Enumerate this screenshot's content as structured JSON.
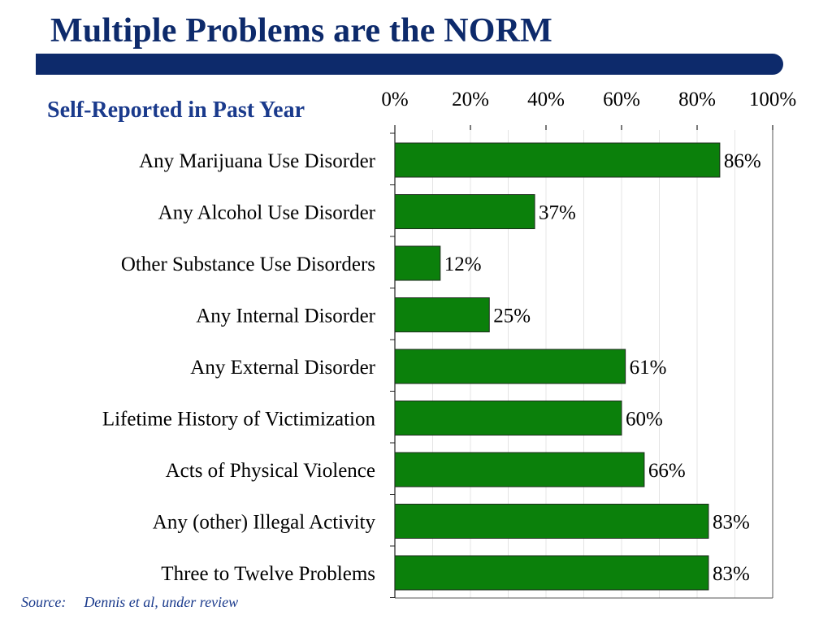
{
  "slide": {
    "title": "Multiple Problems are the NORM",
    "subtitle": "Self-Reported in Past Year",
    "source_label": "Source:",
    "source_text": "Dennis et al, under review"
  },
  "colors": {
    "title": "#0d2a6b",
    "title_bar": "#0d2a6b",
    "bar_fill": "#0b800b",
    "bar_stroke": "#1c2a1c",
    "subtitle": "#1a3a8c"
  },
  "chart_data": {
    "type": "bar",
    "orientation": "horizontal",
    "categories": [
      "Any Marijuana Use Disorder",
      "Any Alcohol Use Disorder",
      "Other Substance Use Disorders",
      "Any Internal Disorder",
      "Any External Disorder",
      "Lifetime History of Victimization",
      "Acts of Physical Violence",
      "Any (other) Illegal Activity",
      "Three to Twelve Problems"
    ],
    "values": [
      86,
      37,
      12,
      25,
      61,
      60,
      66,
      83,
      83
    ],
    "value_labels": [
      "86%",
      "37%",
      "12%",
      "25%",
      "61%",
      "60%",
      "66%",
      "83%",
      "83%"
    ],
    "xlim": [
      0,
      100
    ],
    "x_ticks": [
      0,
      20,
      40,
      60,
      80,
      100
    ],
    "x_tick_labels": [
      "0%",
      "20%",
      "40%",
      "60%",
      "80%",
      "100%"
    ],
    "x_axis_position": "top",
    "grid": true,
    "legend": false
  }
}
